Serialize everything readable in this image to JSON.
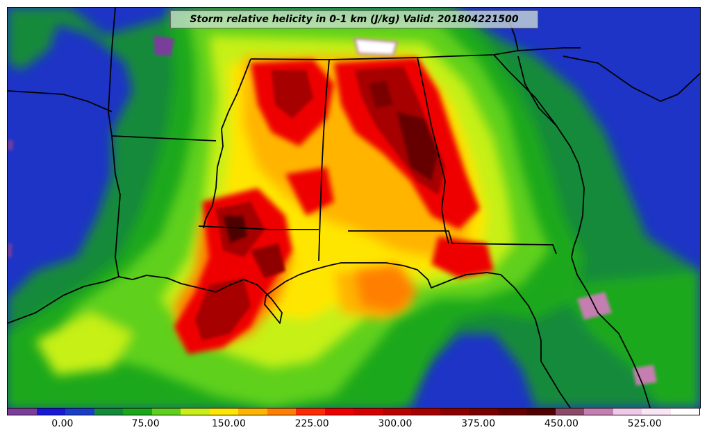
{
  "title": "Storm relative helicity in 0-1 km (J/kg) Valid: 201804221500",
  "colorbar": {
    "colors": [
      "#7a3d9a",
      "#1818d8",
      "#1a3ec8",
      "#128a3a",
      "#1aa81a",
      "#5ed01c",
      "#c6f017",
      "#ffe600",
      "#ffb400",
      "#ff7f00",
      "#ff2a00",
      "#ee0000",
      "#d60000",
      "#bb0000",
      "#a60000",
      "#8e0000",
      "#7a0000",
      "#660000",
      "#500000",
      "#8b4a6a",
      "#c47fb0",
      "#f0c8e8",
      "#fbe6f6",
      "#ffffff"
    ],
    "tick_labels": [
      "0.00",
      "75.00",
      "150.00",
      "225.00",
      "300.00",
      "375.00",
      "450.00",
      "525.00"
    ],
    "tick_values": [
      0,
      75,
      150,
      225,
      300,
      375,
      450,
      525
    ],
    "range": [
      -50,
      575
    ]
  },
  "legend_colors": {
    "water": "#1d34c6",
    "low": "#1aa81a",
    "mid": "#c6f017",
    "high": "#ffe600",
    "higher": "#ff7f00",
    "very_high": "#ee0000",
    "extreme": "#660000"
  }
}
